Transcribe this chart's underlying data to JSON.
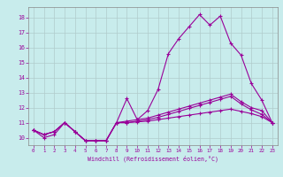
{
  "xlabel": "Windchill (Refroidissement éolien,°C)",
  "bg_color": "#c8ecec",
  "line_color": "#990099",
  "grid_color": "#b0cccc",
  "xlim": [
    -0.5,
    23.5
  ],
  "ylim": [
    9.5,
    18.7
  ],
  "xticks": [
    0,
    1,
    2,
    3,
    4,
    5,
    6,
    7,
    8,
    9,
    10,
    11,
    12,
    13,
    14,
    15,
    16,
    17,
    18,
    19,
    20,
    21,
    22,
    23
  ],
  "yticks": [
    10,
    11,
    12,
    13,
    14,
    15,
    16,
    17,
    18
  ],
  "line1": [
    10.5,
    10.0,
    10.2,
    11.0,
    10.4,
    9.8,
    9.8,
    9.8,
    11.0,
    12.6,
    11.2,
    11.8,
    13.2,
    15.6,
    16.6,
    17.4,
    18.2,
    17.5,
    18.1,
    16.3,
    15.5,
    13.6,
    12.5,
    11.0
  ],
  "line2": [
    10.5,
    10.2,
    10.4,
    11.0,
    10.4,
    9.8,
    9.8,
    9.8,
    11.0,
    11.1,
    11.2,
    11.3,
    11.5,
    11.7,
    11.9,
    12.1,
    12.3,
    12.5,
    12.7,
    12.9,
    12.4,
    12.0,
    11.8,
    11.0
  ],
  "line3": [
    10.5,
    10.2,
    10.4,
    11.0,
    10.4,
    9.8,
    9.8,
    9.8,
    11.0,
    11.0,
    11.1,
    11.2,
    11.35,
    11.55,
    11.75,
    11.95,
    12.15,
    12.35,
    12.55,
    12.75,
    12.25,
    11.85,
    11.55,
    11.0
  ],
  "line4": [
    10.5,
    10.2,
    10.4,
    11.0,
    10.4,
    9.8,
    9.8,
    9.8,
    11.0,
    11.0,
    11.05,
    11.1,
    11.2,
    11.3,
    11.4,
    11.5,
    11.6,
    11.7,
    11.8,
    11.9,
    11.75,
    11.6,
    11.4,
    11.0
  ]
}
